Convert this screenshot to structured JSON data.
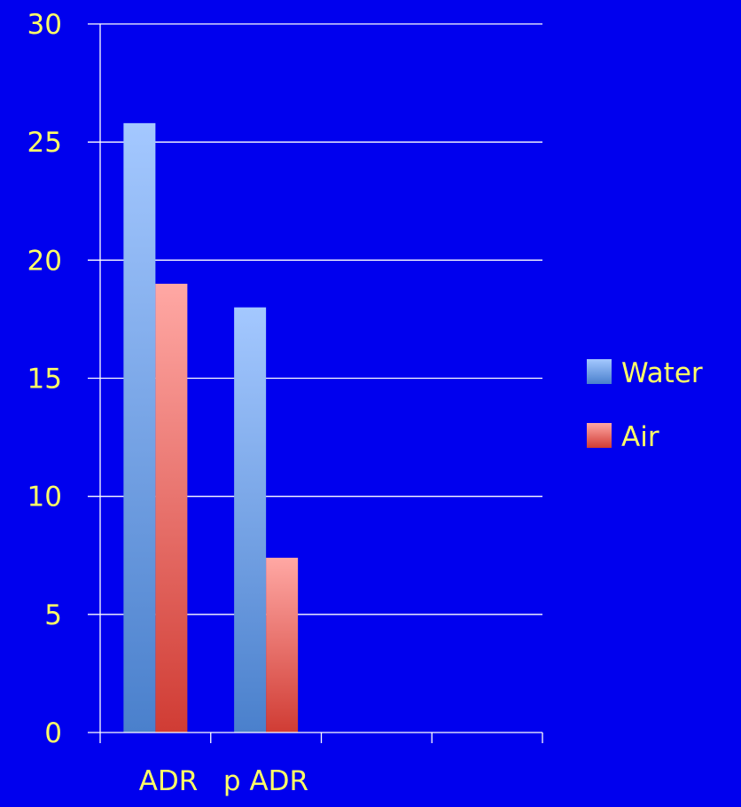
{
  "chart_data": {
    "type": "bar",
    "title": "",
    "xlabel": "",
    "ylabel": "",
    "categories": [
      "ADR",
      "p ADR",
      "",
      ""
    ],
    "series": [
      {
        "name": "Water",
        "values": [
          25.8,
          18.0,
          null,
          null
        ]
      },
      {
        "name": "Air",
        "values": [
          19.0,
          7.4,
          null,
          null
        ]
      }
    ],
    "ylim": [
      0,
      30
    ],
    "yticks": [
      "0",
      "5",
      "10",
      "15",
      "20",
      "25",
      "30"
    ],
    "grid": true,
    "legend_position": "right",
    "colors": {
      "background": "#0000ee",
      "text": "#ffff66",
      "axis": "#ffffff",
      "water_top": "#a4c8ff",
      "water_bottom": "#4a80cc",
      "air_top": "#ffa8a4",
      "air_bottom": "#d03c34"
    }
  }
}
